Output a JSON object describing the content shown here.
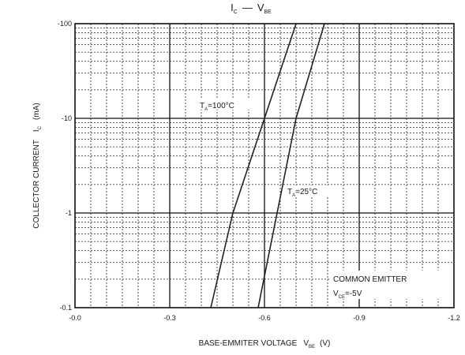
{
  "chart_data": {
    "type": "line",
    "title": {
      "left": "I",
      "left_sub": "C",
      "dash": "—",
      "right": "V",
      "right_sub": "BE"
    },
    "xlabel": {
      "main": "BASE-EMMITER VOLTAGE",
      "symbol": "V",
      "symbol_sub": "BE",
      "unit": "(V)"
    },
    "ylabel": {
      "main": "COLLECTOR CURRENT",
      "symbol": "I",
      "symbol_sub": "C",
      "unit": "(mA)"
    },
    "x_ticks": [
      "-0.0",
      "-0.3",
      "-0.6",
      "-0.9",
      "-1.2"
    ],
    "y_ticks": [
      "-0.1",
      "-1",
      "-10",
      "-100"
    ],
    "xlim": [
      0,
      -1.2
    ],
    "ylim": [
      -0.1,
      -100
    ],
    "y_scale": "log",
    "grid": true,
    "series": [
      {
        "label_main": "T",
        "label_sub": "A",
        "label_rest": "=100°C",
        "x": [
          -0.43,
          -0.5,
          -0.6,
          -0.7
        ],
        "y": [
          -0.1,
          -1,
          -10,
          -100
        ]
      },
      {
        "label_main": "T",
        "label_sub": "A",
        "label_rest": "=25°C",
        "x": [
          -0.58,
          -0.64,
          -0.7,
          -0.79
        ],
        "y": [
          -0.1,
          -1,
          -10,
          -100
        ]
      }
    ],
    "annotation": {
      "line1": "COMMON EMITTER",
      "line2_main": "V",
      "line2_sub": "CE",
      "line2_rest": "=-5V"
    }
  }
}
